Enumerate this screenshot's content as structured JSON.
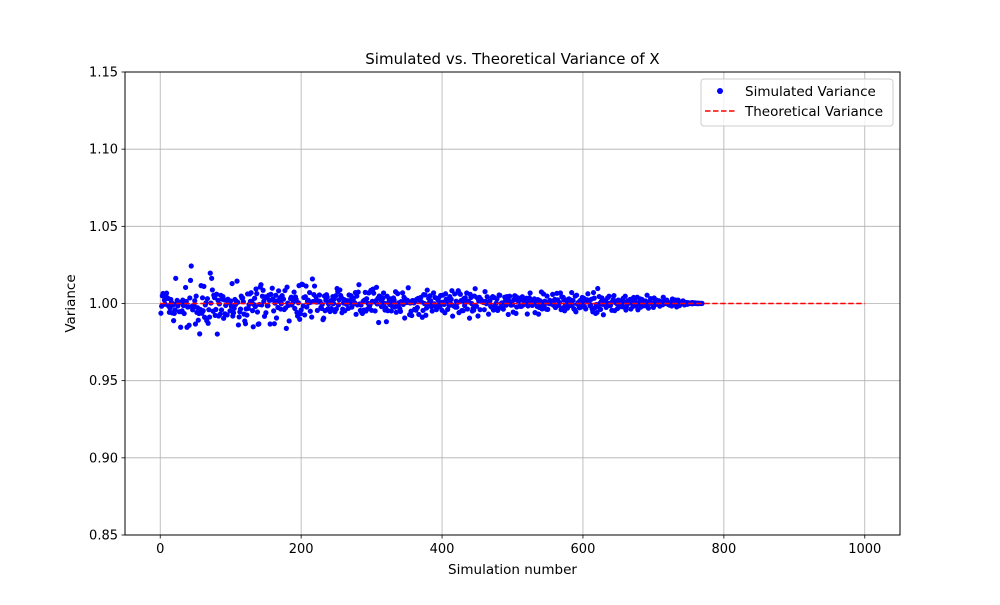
{
  "chart_data": {
    "type": "scatter",
    "title": "Simulated vs. Theoretical Variance of X",
    "xlabel": "Simulation number",
    "ylabel": "Variance",
    "xlim": [
      -50,
      1050
    ],
    "ylim": [
      0.85,
      1.15
    ],
    "xticks": [
      0,
      200,
      400,
      600,
      800,
      1000
    ],
    "xtick_labels": [
      "0",
      "200",
      "400",
      "600",
      "800",
      "1000"
    ],
    "yticks": [
      0.85,
      0.9,
      0.95,
      1.0,
      1.05,
      1.1,
      1.15
    ],
    "ytick_labels": [
      "0.85",
      "0.90",
      "0.95",
      "1.00",
      "1.05",
      "1.10",
      "1.15"
    ],
    "grid": true,
    "legend_position": "upper right",
    "series": [
      {
        "name": "Simulated Variance",
        "kind": "scatter",
        "color": "#0000ff",
        "x_start": 1,
        "x_step": 1,
        "y": [
          0.9937,
          0.9983,
          1.005,
          1.0065,
          1.005,
          1.0022,
          0.9995,
          1.0046,
          1.0067,
          1.0037,
          1.0033,
          0.9983,
          0.9943,
          0.997,
          1.0026,
          1.0007,
          0.9939,
          0.9989,
          0.9889,
          0.9936,
          0.9958,
          1.0163,
          1.0001,
          1.002,
          0.9984,
          1.0009,
          0.9947,
          1.0004,
          0.9846,
          0.9947,
          0.9952,
          1.0022,
          0.9986,
          0.9935,
          1.0002,
          1.0104,
          1.0013,
          0.9846,
          0.9977,
          0.9979,
          0.9859,
          1.0036,
          1.015,
          1.0243,
          0.9982,
          0.9959,
          0.9974,
          0.999,
          1.0018,
          0.9867,
          1.0048,
          0.9942,
          0.9973,
          0.9892,
          0.9935,
          0.9803,
          0.9961,
          1.0116,
          0.9937,
          1.0037,
          0.9953,
          1.0111,
          0.9911,
          0.9991,
          1.0005,
          0.9889,
          1.0031,
          0.9872,
          0.996,
          0.9912,
          1.0197,
          1.0003,
          1.0163,
          1.0088,
          0.995,
          1.0054,
          1.0038,
          0.9923,
          0.9961,
          1.006,
          0.9802,
          1.0021,
          0.9919,
          0.9997,
          0.993,
          1.0053,
          0.9958,
          1.0028,
          1.0045,
          0.9904,
          1.0023,
          0.9933,
          0.9988,
          1.0021,
          0.9926,
          1.0028,
          1.0008,
          1.0005,
          0.9952,
          1.0016,
          0.9982,
          1.0129,
          0.9919,
          0.994,
          0.9969,
          1.0026,
          0.9994,
          1.0015,
          1.0145,
          1.0008,
          0.9861,
          0.9913,
          0.9946,
          0.9964,
          1.0048,
          1.0035,
          1.0036,
          1.0011,
          0.9931,
          0.9887,
          0.9869,
          0.9965,
          0.9925,
          1.0062,
          0.9968,
          0.9993,
          1.0062,
          1.0014,
          1.007,
          1.0015,
          0.9954,
          0.9849,
          0.9993,
          1.0034,
          0.998,
          1.0094,
          1.0064,
          0.9945,
          0.9865,
          0.9868,
          0.9994,
          1.0107,
          1.0122,
          0.9991,
          1.0047,
          1.0086,
          1.0015,
          0.9917,
          1.0043,
          0.994,
          1.0037,
          0.9985,
          0.9986,
          1.0054,
          1.002,
          0.9867,
          1.0059,
          1.0023,
          1.0099,
          1.0029,
          0.9952,
          0.9869,
          1.0002,
          1.0053,
          0.9906,
          1.0017,
          0.9974,
          1.0082,
          1.0015,
          1.0038,
          0.9964,
          0.9999,
          1.0051,
          1.0033,
          1.0028,
          0.9961,
          1.0084,
          0.9972,
          0.9839,
          1.0106,
          1.0003,
          0.9988,
          0.9887,
          0.9993,
          1.0031,
          1.0041,
          0.9991,
          1.0028,
          1.001,
          1.0074,
          0.9968,
          1.0042,
          1.0026,
          0.9942,
          0.9919,
          1.0005,
          1.0116,
          0.9898,
          0.9934,
          0.9958,
          1.0125,
          1.0123,
          0.9984,
          1.0039,
          0.9926,
          1.0044,
          1.0113,
          0.9977,
          1.0015,
          1.0022,
          1.0004,
          1.0071,
          0.995,
          1.0009,
          0.9912,
          1.0159,
          1.0013,
          1.0058,
          1.0113,
          1.0013,
          1.0043,
          1.0009,
          0.9955,
          1.0018,
          1.001,
          1.0055,
          1.0013,
          0.9974,
          0.9968,
          0.9994,
          0.9895,
          0.9905,
          1.0048,
          0.9954,
          1.0021,
          1.0057,
          1.0042,
          0.9965,
          0.9997,
          1.0003,
          0.9948,
          1.0018,
          0.9968,
          1.0002,
          1.0045,
          1.0,
          1.003,
          0.9947,
          1.005,
          0.9965,
          1.0097,
          1.0077,
          0.9991,
          1.0024,
          1.0088,
          1.0052,
          1.004,
          0.9941,
          0.9964,
          1.0003,
          1.0025,
          0.9953,
          1.001,
          0.9996,
          1.0019,
          1.0001,
          0.9968,
          1.0055,
          1.0019,
          1.0002,
          1.005,
          0.9976,
          1.0037,
          1.0029,
          0.9998,
          1.0005,
          1.0071,
          0.993,
          1.0048,
          0.9991,
          1.0074,
          1.0122,
          0.9997,
          0.9955,
          0.999,
          0.9942,
          0.9936,
          1.0014,
          0.9957,
          1.0022,
          1.0072,
          0.9951,
          1.0031,
          0.9964,
          1.0001,
          1.0069,
          0.9981,
          0.9994,
          1.0085,
          0.9956,
          1.0014,
          1.0093,
          1.0067,
          1.001,
          0.9952,
          1.0018,
          1.0105,
          0.9997,
          1.0034,
          0.9877,
          1.0049,
          1.0044,
          1.0023,
          0.998,
          1.0009,
          1.0035,
          1.0068,
          1.0002,
          0.9958,
          0.9973,
          0.9882,
          1.0047,
          0.9954,
          1.0007,
          1.003,
          0.9993,
          1.003,
          0.9952,
          0.9984,
          1.0015,
          1.0036,
          1.0022,
          0.9976,
          1.0076,
          0.9943,
          0.9996,
          1.0064,
          0.9987,
          1.0005,
          0.9967,
          0.9949,
          1.0012,
          1.0008,
          1.0069,
          0.9994,
          1.004,
          0.9906,
          1.0027,
          1.0011,
          1.0006,
          1.002,
          1.0102,
          1.0006,
          0.9928,
          1.0003,
          0.995,
          0.9922,
          1.0019,
          1.0019,
          1.0004,
          0.9962,
          1.0011,
          0.9957,
          1.0027,
          0.9974,
          1.0033,
          0.9929,
          1.0021,
          1.0034,
          1.004,
          1.001,
          0.9911,
          0.9955,
          1.0058,
          1.0,
          1.0056,
          0.9924,
          0.9971,
          1.0087,
          0.9996,
          1.0033,
          1.0004,
          1.005,
          1.0017,
          0.9978,
          0.9951,
          0.9984,
          1.0069,
          0.9998,
          1.0039,
          0.9984,
          0.996,
          0.9988,
          1.0024,
          1.0035,
          0.9997,
          0.9978,
          1.0052,
          1.0007,
          0.9956,
          1.0054,
          1.0008,
          0.9994,
          0.994,
          1.0063,
          1.0028,
          1.0016,
          0.9962,
          1.0013,
          0.9987,
          1.0045,
          1.0001,
          1.0028,
          1.0083,
          0.9918,
          0.9985,
          0.9984,
          1.0062,
          0.9976,
          1.0015,
          0.9976,
          1.0005,
          1.0083,
          0.9941,
          1.0064,
          1.006,
          1.0019,
          0.9954,
          1.0016,
          0.9954,
          1.0032,
          0.9987,
          1.0037,
          1.0009,
          1.0068,
          0.9964,
          1.0013,
          1.0011,
          0.9905,
          1.0059,
          1.0039,
          1.0,
          0.9951,
          0.9969,
          0.9957,
          1.0048,
          1.0096,
          0.9985,
          0.9982,
          1.0037,
          0.9919,
          1.0017,
          1.004,
          0.996,
          1.0028,
          1.0014,
          1.0012,
          1.0014,
          1.0006,
          0.996,
          1.0077,
          1.0014,
          0.9999,
          1.0044,
          1.0009,
          0.9931,
          1.0006,
          1.0018,
          0.9983,
          0.9977,
          1.0039,
          1.0045,
          0.9958,
          1.0038,
          0.9986,
          0.9972,
          1.0003,
          1.003,
          0.9955,
          0.9971,
          1.0055,
          1.0053,
          0.9972,
          1.0,
          1.0004,
          0.9973,
          0.9963,
          1.0006,
          1.0041,
          1.0017,
          0.9989,
          1.0045,
          1.0013,
          0.9929,
          1.0017,
          1.0047,
          1.0008,
          0.9989,
          1.0005,
          0.9992,
          0.9944,
          1.0025,
          1.005,
          1.0049,
          0.9936,
          0.9977,
          1.0021,
          1.0037,
          1.0016,
          0.9983,
          1.0026,
          0.9981,
          0.9983,
          1.0044,
          0.999,
          1.0015,
          0.9997,
          1.0021,
          1.0002,
          1.0034,
          0.9932,
          0.9984,
          1.0012,
          1.0036,
          1.0068,
          1.0007,
          1.0023,
          0.9988,
          1.0014,
          1.0,
          1.003,
          0.9941,
          1.0014,
          1.001,
          0.9981,
          1.0025,
          0.9931,
          0.9975,
          1.0018,
          0.9989,
          1.0075,
          0.9965,
          1.0009,
          1.0062,
          0.9985,
          1.0015,
          1.0005,
          0.9963,
          1.0048,
          0.9962,
          1.0003,
          0.9999,
          1.002,
          1.0013,
          0.9997,
          1.0013,
          1.0059,
          0.9989,
          1.0,
          1.0027,
          0.9974,
          0.998,
          1.0066,
          1.0024,
          0.9988,
          0.9998,
          1.0006,
          1.0068,
          0.996,
          1.0043,
          0.9972,
          1.004,
          1.0023,
          0.9953,
          0.9988,
          1.0023,
          1.0017,
          0.997,
          0.9988,
          1.003,
          1.002,
          0.9987,
          1.0022,
          1.0071,
          0.9993,
          1.0019,
          0.9966,
          0.9962,
          1.0048,
          0.9946,
          1.0054,
          0.9996,
          1.0005,
          1.0008,
          0.9972,
          1.0019,
          0.9976,
          0.9993,
          1.0039,
          1.0003,
          1.0034,
          0.9982,
          1.0027,
          0.9965,
          1.0012,
          1.0024,
          1.0063,
          1.001,
          1.0017,
          0.9986,
          0.9991,
          1.0028,
          0.9965,
          0.9946,
          1.0071,
          1.0035,
          0.9972,
          0.9936,
          0.9994,
          0.9942,
          1.0097,
          0.9977,
          1.0045,
          1.0001,
          0.9962,
          1.0012,
          1.0036,
          0.9994,
          0.9927,
          1.0019,
          1.0011,
          1.0016,
          0.9975,
          1.0004,
          1.0037,
          0.9986,
          1.0047,
          1.0002,
          0.9987,
          1.0003,
          0.9956,
          1.0014,
          1.0026,
          1.0051,
          0.9954,
          1.0006,
          1.001,
          0.9999,
          0.9967,
          1.0022,
          1.002,
          0.9979,
          1.0011,
          1.0008,
          0.9996,
          0.9979,
          1.0033,
          1.0013,
          0.9977,
          1.0047,
          0.9958,
          0.9983,
          1.0011,
          1.0018,
          1.0002,
          1.002,
          1.0027,
          0.9964,
          1.0027,
          0.9998,
          0.9981,
          1.0039,
          1.0005,
          1.0014,
          0.9984,
          1.0001,
          1.0041,
          0.9959,
          1.0004,
          0.9998,
          1.003,
          0.9976,
          1.0027,
          1.0025,
          1.0006,
          0.9985,
          1.0003,
          0.9993,
          1.0016,
          0.9984,
          1.0054,
          0.9996,
          0.997,
          1.001,
          1.0009,
          1.0032,
          1.0006,
          0.9997,
          1.0,
          0.9975,
          1.0036,
          0.9991,
          1.0015,
          1.0023,
          0.9996,
          0.9997,
          1.0009,
          1.0018,
          0.9983,
          1.0013,
          1.0004,
          1.0007,
          0.9992,
          1.0041,
          0.9998,
          1.0017,
          1.0004,
          1.0,
          1.0022,
          1.0003,
          0.9995,
          1.0,
          0.9989,
          1.0005,
          1.0007,
          0.9984,
          1.0029,
          1.0006,
          1.0005,
          0.9998,
          1.0023,
          1.0006,
          0.9978,
          1.0014,
          1.0022,
          1.0,
          0.9986,
          1.001,
          0.9998,
          1.0009,
          1.0003,
          1.0017,
          0.9997,
          0.9991,
          1.0005,
          1.0007,
          1.0006,
          0.9995,
          1.0005,
          1.0004,
          0.9999,
          1.0003,
          1.0001,
          1.0005,
          0.9998,
          1.0006,
          1.0,
          1.0002,
          1.0004,
          1.0001,
          1.0,
          1.0003,
          0.9999,
          1.0002,
          1.0001,
          1.0,
          1.0001,
          1.0,
          1.0001
        ]
      },
      {
        "name": "Theoretical Variance",
        "kind": "hline",
        "style": "dashed",
        "color": "#ff0000",
        "y": 1.0,
        "x_range": [
          0,
          1000
        ]
      }
    ]
  }
}
